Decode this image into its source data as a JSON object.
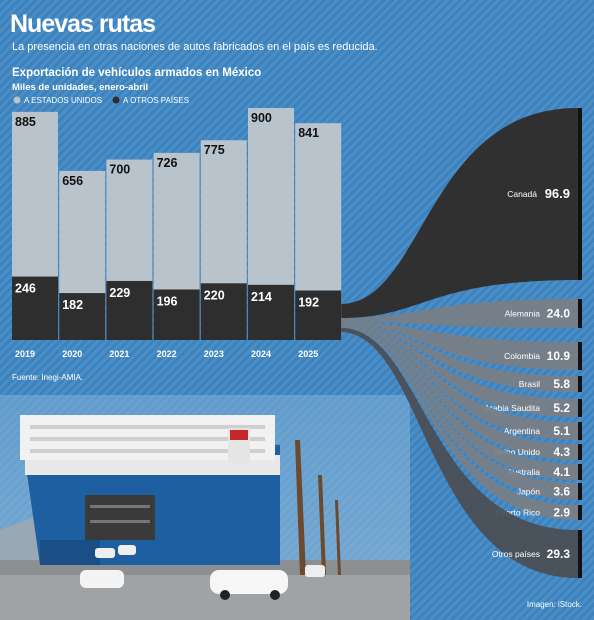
{
  "header": {
    "title": "Nuevas rutas",
    "subtitle": "La presencia en otras naciones de autos fabricados en el país es reducida."
  },
  "chart_data": [
    {
      "type": "bar",
      "title": "Exportación de vehículos armados en México",
      "subtitle": "Miles de unidades, enero-abril",
      "categories": [
        "2019",
        "2020",
        "2021",
        "2022",
        "2023",
        "2024",
        "2025"
      ],
      "series": [
        {
          "name": "A ESTADOS UNIDOS",
          "values": [
            885,
            656,
            700,
            726,
            775,
            900,
            841
          ],
          "color": "#b8c3cc"
        },
        {
          "name": "A OTROS PAÍSES",
          "values": [
            246,
            182,
            229,
            196,
            220,
            214,
            192
          ],
          "color": "#2e2e2e"
        }
      ],
      "stacked": false,
      "ylim": [
        0,
        950
      ],
      "legend": "top-left"
    },
    {
      "type": "sankey",
      "categories": [
        "Canadá",
        "Alemania",
        "Colombia",
        "Brasil",
        "Arabia Saudita",
        "Argentina",
        "Reino Unido",
        "Australia",
        "Japón",
        "Puerto Rico",
        "Otros países"
      ],
      "values": [
        96.9,
        24.0,
        10.9,
        5.8,
        5.2,
        5.1,
        4.3,
        4.1,
        3.6,
        2.9,
        29.3
      ],
      "value_labels": [
        "96.9",
        "24.0",
        "10.9",
        "5.8",
        "5.2",
        "5.1",
        "4.3",
        "4.1",
        "3.6",
        "2.9",
        "29.3"
      ]
    }
  ],
  "source": "Fuente: Inegi-AMIA.",
  "image_credit": "Imagen: iStock.",
  "colors": {
    "background": "#3d82bd",
    "us": "#b8c3cc",
    "others": "#2e2e2e",
    "flow_grey": "#7a7f84",
    "flow_dark": "#303030"
  }
}
